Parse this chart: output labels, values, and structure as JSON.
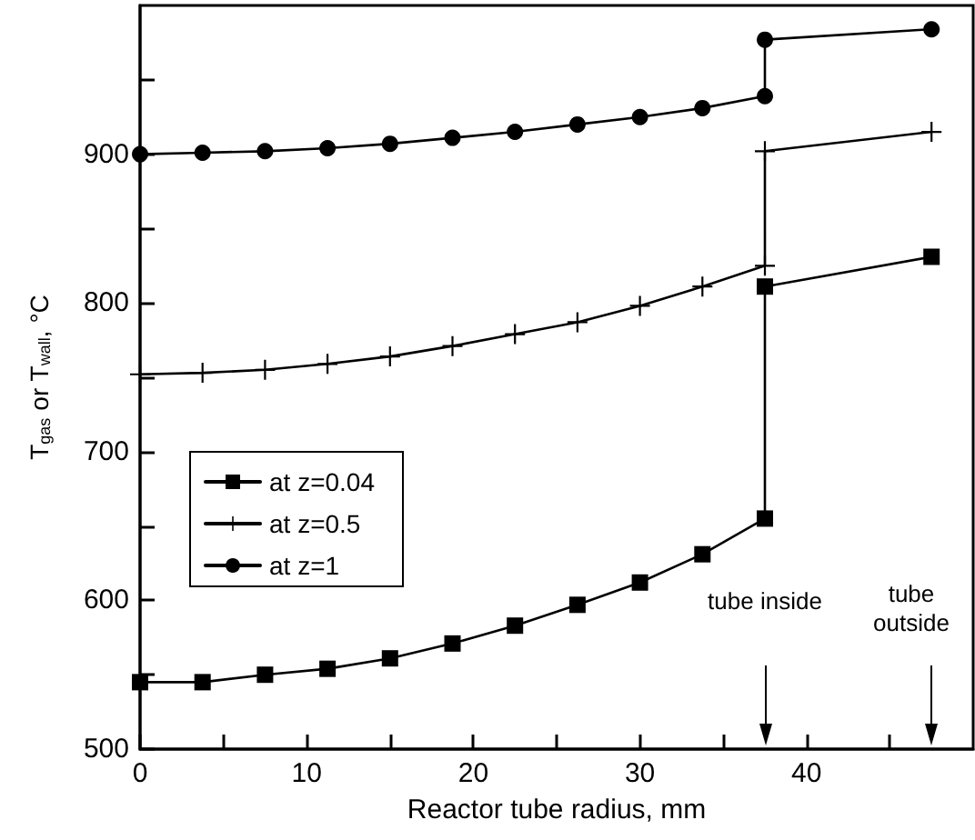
{
  "chart_data": {
    "type": "line",
    "xlabel": "Reactor tube radius, mm",
    "ylabel": "T$_{gas}$ or T$_{wall}$, °C",
    "xlim": [
      0,
      50
    ],
    "xticks": [
      0,
      {
        "value": 5,
        "label": null
      },
      10,
      {
        "value": 15,
        "label": null
      },
      20,
      {
        "value": 25,
        "label": null
      },
      30,
      {
        "value": 35,
        "label": null
      },
      40,
      {
        "value": 45,
        "label": null
      }
    ],
    "ylim": [
      500,
      1000
    ],
    "yticks": [
      500,
      {
        "value": 550,
        "label": null
      },
      600,
      {
        "value": 650,
        "label": null
      },
      700,
      {
        "value": 750,
        "label": null
      },
      800,
      {
        "value": 850,
        "label": null
      },
      900,
      {
        "value": 950,
        "label": null
      }
    ],
    "x": [
      0,
      3.75,
      7.5,
      11.25,
      15,
      18.75,
      22.5,
      26.25,
      30,
      33.75,
      37.5,
      37.5,
      47.5
    ],
    "series": [
      {
        "name": "at z=0.04",
        "color": "#000000",
        "marker": "square",
        "values": [
          545,
          545,
          550,
          554,
          561,
          571,
          583,
          597,
          612,
          631,
          655,
          811,
          831
        ]
      },
      {
        "name": "at z=0.5",
        "color": "#000000",
        "marker": "cross",
        "values": [
          752,
          753,
          755,
          759,
          764,
          771,
          779,
          787,
          798,
          811,
          825,
          902,
          915
        ]
      },
      {
        "name": "at z=1",
        "color": "#000000",
        "marker": "circle",
        "values": [
          900,
          901,
          902,
          904,
          907,
          911,
          915,
          920,
          925,
          931,
          939,
          977,
          984
        ]
      }
    ],
    "annotations": [
      "tube inside",
      "tube outside"
    ],
    "legend": "left",
    "grid": false,
    "line_style": "solid"
  }
}
